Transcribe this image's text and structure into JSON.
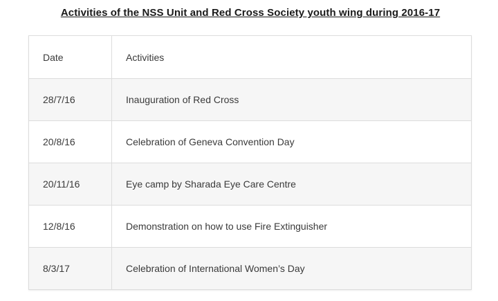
{
  "title": "Activities of the NSS Unit and Red Cross Society youth wing during 2016-17",
  "table": {
    "headers": {
      "date": "Date",
      "activities": "Activities"
    },
    "rows": [
      {
        "date": "28/7/16",
        "activity": "Inauguration of Red Cross"
      },
      {
        "date": "20/8/16",
        "activity": "Celebration of Geneva Convention Day"
      },
      {
        "date": "20/11/16",
        "activity": "Eye camp by Sharada Eye Care Centre"
      },
      {
        "date": "12/8/16",
        "activity": "Demonstration on how to use Fire Extinguisher"
      },
      {
        "date": "8/3/17",
        "activity": "Celebration of International Women’s Day"
      }
    ]
  }
}
